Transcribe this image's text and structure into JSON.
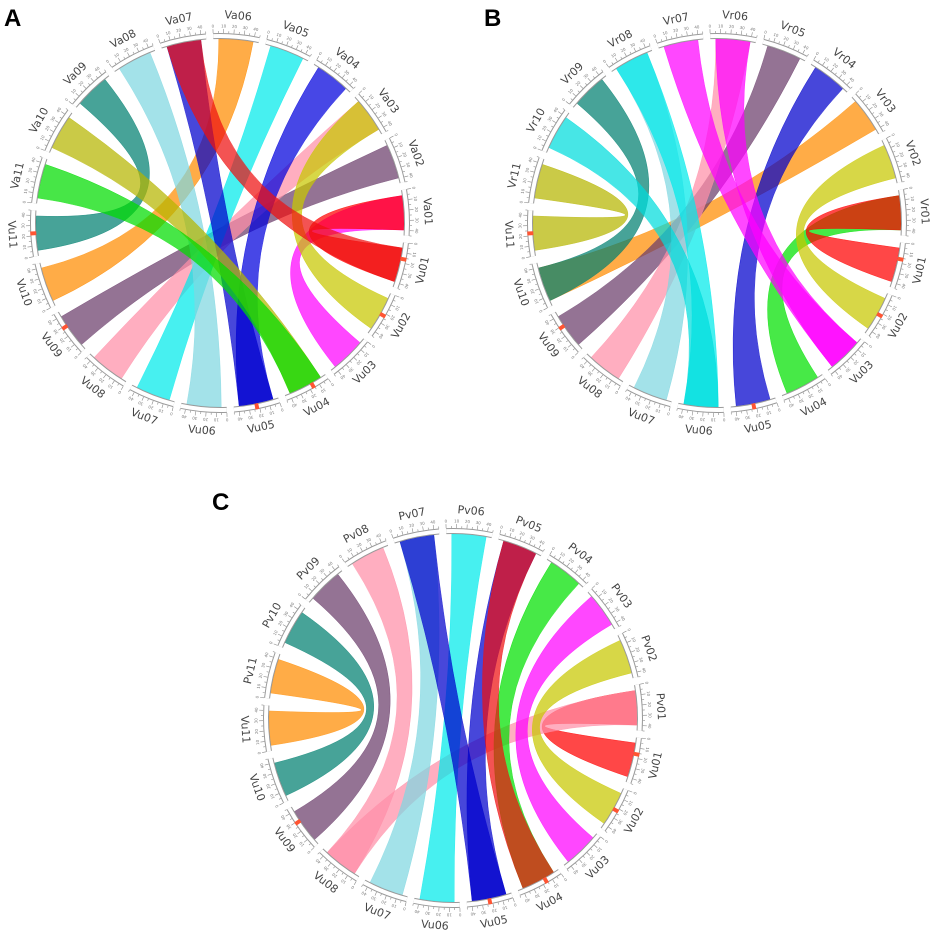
{
  "panels": [
    {
      "letter": "A",
      "chromosomes": [
        "Vu01",
        "Vu02",
        "Vu03",
        "Vu04",
        "Vu05",
        "Vu06",
        "Vu07",
        "Vu08",
        "Vu09",
        "Vu10",
        "Vu11",
        "Va11",
        "Va10",
        "Va09",
        "Va08",
        "Va07",
        "Va06",
        "Va05",
        "Va04",
        "Va03",
        "Va02",
        "Va01"
      ],
      "highlights": [
        "Vu01",
        "Vu02",
        "Vu04",
        "Vu05",
        "Vu09",
        "Vu11"
      ],
      "links": [
        {
          "from": "Va01",
          "to": "Vu03",
          "color": "#ff00ff"
        },
        {
          "from": "Va01",
          "to": "Vu01",
          "color": "#ff0000"
        },
        {
          "from": "Va02",
          "to": "Vu09",
          "color": "#6b3d6b"
        },
        {
          "from": "Va03",
          "to": "Vu08",
          "color": "#ff8fa8"
        },
        {
          "from": "Va03",
          "to": "Vu02",
          "color": "#c8c800"
        },
        {
          "from": "Va04",
          "to": "Vu05",
          "color": "#0000dd"
        },
        {
          "from": "Va05",
          "to": "Vu07",
          "color": "#00eaea"
        },
        {
          "from": "Va06",
          "to": "Vu10",
          "color": "#ff8c00"
        },
        {
          "from": "Va07",
          "to": "Vu05",
          "color": "#0000cc"
        },
        {
          "from": "Va07",
          "to": "Vu01",
          "color": "#ee1111"
        },
        {
          "from": "Va08",
          "to": "Vu06",
          "color": "#7fd7e0"
        },
        {
          "from": "Va09",
          "to": "Vu11",
          "color": "#008070"
        },
        {
          "from": "Va10",
          "to": "Vu04",
          "color": "#b5b500"
        },
        {
          "from": "Va11",
          "to": "Vu04",
          "color": "#00dd00"
        }
      ]
    },
    {
      "letter": "B",
      "chromosomes": [
        "Vu01",
        "Vu02",
        "Vu03",
        "Vu04",
        "Vu05",
        "Vu06",
        "Vu07",
        "Vu08",
        "Vu09",
        "Vu10",
        "Vu11",
        "Vr11",
        "Vr10",
        "Vr09",
        "Vr08",
        "Vr07",
        "Vr06",
        "Vr05",
        "Vr04",
        "Vr03",
        "Vr02",
        "Vr01"
      ],
      "highlights": [
        "Vu01",
        "Vu02",
        "Vu05",
        "Vu09",
        "Vu11"
      ],
      "links": [
        {
          "from": "Vr01",
          "to": "Vu04",
          "color": "#00e000"
        },
        {
          "from": "Vr01",
          "to": "Vu01",
          "color": "#ff0000"
        },
        {
          "from": "Vr02",
          "to": "Vu02",
          "color": "#c8c800"
        },
        {
          "from": "Vr03",
          "to": "Vu10",
          "color": "#ff8c00"
        },
        {
          "from": "Vr04",
          "to": "Vu05",
          "color": "#0000cc"
        },
        {
          "from": "Vr05",
          "to": "Vu09",
          "color": "#6b3d6b"
        },
        {
          "from": "Vr06",
          "to": "Vu08",
          "color": "#ff8fa8"
        },
        {
          "from": "Vr06",
          "to": "Vu03",
          "color": "#ff00ff"
        },
        {
          "from": "Vr07",
          "to": "Vu03",
          "color": "#ff00ff"
        },
        {
          "from": "Vr08",
          "to": "Vu07",
          "color": "#7fd7e0"
        },
        {
          "from": "Vr08",
          "to": "Vu06",
          "color": "#00eaea"
        },
        {
          "from": "Vr09",
          "to": "Vu10",
          "color": "#008070"
        },
        {
          "from": "Vr10",
          "to": "Vu06",
          "color": "#00dddd"
        },
        {
          "from": "Vr11",
          "to": "Vu11",
          "color": "#b5b500"
        }
      ]
    },
    {
      "letter": "C",
      "chromosomes": [
        "Vu01",
        "Vu02",
        "Vu03",
        "Vu04",
        "Vu05",
        "Vu06",
        "Vu07",
        "Vu08",
        "Vu09",
        "Vu10",
        "Vu11",
        "Pv11",
        "Pv10",
        "Pv09",
        "Pv08",
        "Pv07",
        "Pv06",
        "Pv05",
        "Pv04",
        "Pv03",
        "Pv02",
        "Pv01"
      ],
      "highlights": [
        "Vu01",
        "Vu02",
        "Vu04",
        "Vu05",
        "Vu09"
      ],
      "links": [
        {
          "from": "Pv01",
          "to": "Vu01",
          "color": "#ff0000"
        },
        {
          "from": "Pv01",
          "to": "Vu08",
          "color": "#ff8fa8"
        },
        {
          "from": "Pv02",
          "to": "Vu02",
          "color": "#c8c800"
        },
        {
          "from": "Pv03",
          "to": "Vu03",
          "color": "#ff00ff"
        },
        {
          "from": "Pv04",
          "to": "Vu04",
          "color": "#00e000"
        },
        {
          "from": "Pv05",
          "to": "Vu05",
          "color": "#0000cc"
        },
        {
          "from": "Pv05",
          "to": "Vu04",
          "color": "#ee1111"
        },
        {
          "from": "Pv06",
          "to": "Vu06",
          "color": "#00eaea"
        },
        {
          "from": "Pv07",
          "to": "Vu07",
          "color": "#7fd7e0"
        },
        {
          "from": "Pv07",
          "to": "Vu05",
          "color": "#0000cc"
        },
        {
          "from": "Pv08",
          "to": "Vu08",
          "color": "#ff8fa8"
        },
        {
          "from": "Pv09",
          "to": "Vu09",
          "color": "#6b3d6b"
        },
        {
          "from": "Pv10",
          "to": "Vu10",
          "color": "#008070"
        },
        {
          "from": "Pv11",
          "to": "Vu11",
          "color": "#ff8c00"
        }
      ]
    }
  ]
}
